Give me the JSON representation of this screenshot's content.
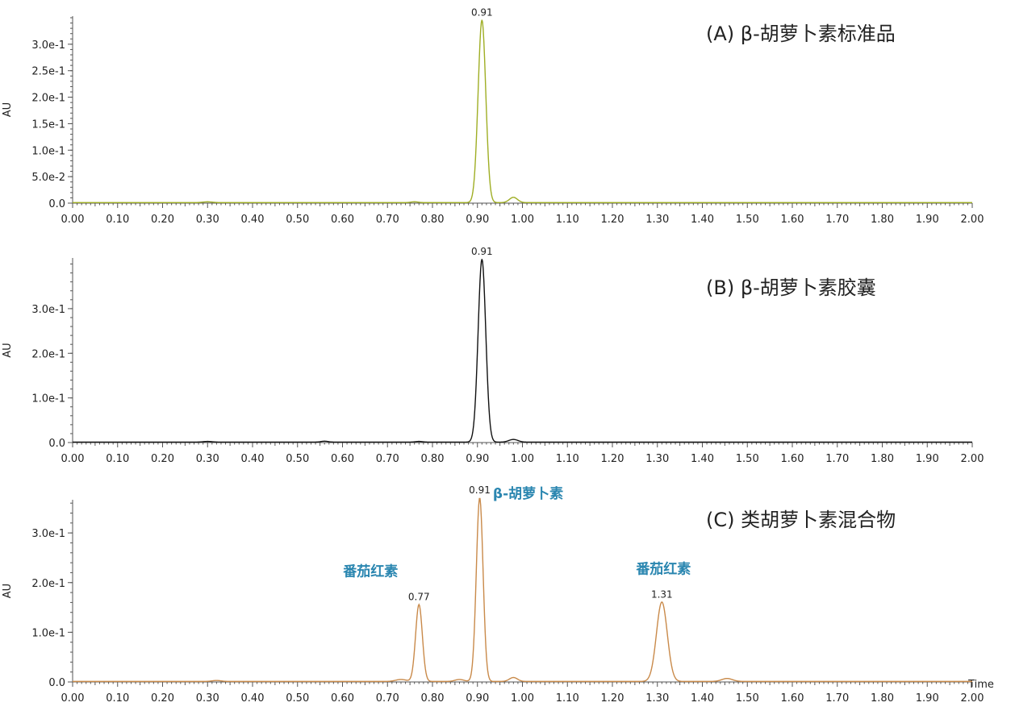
{
  "chart_data": [
    {
      "type": "line",
      "panel": "A",
      "title": "(A) β-胡萝卜素标准品",
      "xlabel": "",
      "ylabel": "AU",
      "xlim": [
        0.0,
        2.0
      ],
      "ylim": [
        0.0,
        0.35
      ],
      "x_tick_labels": [
        "0.00",
        "0.10",
        "0.20",
        "0.30",
        "0.40",
        "0.50",
        "0.60",
        "0.70",
        "0.80",
        "0.90",
        "1.00",
        "1.10",
        "1.20",
        "1.30",
        "1.40",
        "1.50",
        "1.60",
        "1.70",
        "1.80",
        "1.90",
        "2.00"
      ],
      "y_ticks": [
        0.0,
        0.05,
        0.1,
        0.15,
        0.2,
        0.25,
        0.3
      ],
      "y_tick_labels": [
        "0.0",
        "5.0e-2",
        "1.0e-1",
        "1.5e-1",
        "2.0e-1",
        "2.5e-1",
        "3.0e-1"
      ],
      "color": "#9fae24",
      "baseline": 0.001,
      "peaks": [
        {
          "x": 0.3,
          "y": 0.0015,
          "sigma": 0.01
        },
        {
          "x": 0.76,
          "y": 0.0015,
          "sigma": 0.008
        },
        {
          "x": 0.91,
          "y": 0.345,
          "sigma": 0.0085
        },
        {
          "x": 0.98,
          "y": 0.01,
          "sigma": 0.009
        }
      ],
      "peak_labels": [
        {
          "x": 0.91,
          "y": 0.345,
          "text": "0.91"
        }
      ],
      "annotations": []
    },
    {
      "type": "line",
      "panel": "B",
      "title": "(B) β-胡萝卜素胶囊",
      "xlabel": "",
      "ylabel": "AU",
      "xlim": [
        0.0,
        2.0
      ],
      "ylim": [
        0.0,
        0.41
      ],
      "x_tick_labels": [
        "0.00",
        "0.10",
        "0.20",
        "0.30",
        "0.40",
        "0.50",
        "0.60",
        "0.70",
        "0.80",
        "0.90",
        "1.00",
        "1.10",
        "1.20",
        "1.30",
        "1.40",
        "1.50",
        "1.60",
        "1.70",
        "1.80",
        "1.90",
        "2.00"
      ],
      "y_ticks": [
        0.0,
        0.1,
        0.2,
        0.3
      ],
      "y_tick_labels": [
        "0.0",
        "1.0e-1",
        "2.0e-1",
        "3.0e-1"
      ],
      "color": "#111111",
      "baseline": 0.001,
      "peaks": [
        {
          "x": 0.3,
          "y": 0.0015,
          "sigma": 0.01
        },
        {
          "x": 0.56,
          "y": 0.002,
          "sigma": 0.008
        },
        {
          "x": 0.77,
          "y": 0.0015,
          "sigma": 0.008
        },
        {
          "x": 0.91,
          "y": 0.41,
          "sigma": 0.0085
        },
        {
          "x": 0.98,
          "y": 0.006,
          "sigma": 0.01
        }
      ],
      "peak_labels": [
        {
          "x": 0.91,
          "y": 0.41,
          "text": "0.91"
        }
      ],
      "annotations": []
    },
    {
      "type": "line",
      "panel": "C",
      "title": "(C) 类胡萝卜素混合物",
      "xlabel": "Time",
      "ylabel": "AU",
      "xlim": [
        0.0,
        2.0
      ],
      "ylim": [
        0.0,
        0.37
      ],
      "x_tick_labels": [
        "0.00",
        "0.10",
        "0.20",
        "0.30",
        "0.40",
        "0.50",
        "0.60",
        "0.70",
        "0.80",
        "0.90",
        "1.00",
        "1.10",
        "1.20",
        "1.30",
        "1.40",
        "1.50",
        "1.60",
        "1.70",
        "1.80",
        "1.90",
        "2.00"
      ],
      "y_ticks": [
        0.0,
        0.1,
        0.2,
        0.3
      ],
      "y_tick_labels": [
        "0.0",
        "1.0e-1",
        "2.0e-1",
        "3.0e-1"
      ],
      "color": "#c98a4a",
      "baseline": 0.001,
      "peaks": [
        {
          "x": 0.32,
          "y": 0.002,
          "sigma": 0.01
        },
        {
          "x": 0.73,
          "y": 0.004,
          "sigma": 0.012
        },
        {
          "x": 0.77,
          "y": 0.155,
          "sigma": 0.0075
        },
        {
          "x": 0.86,
          "y": 0.004,
          "sigma": 0.01
        },
        {
          "x": 0.905,
          "y": 0.37,
          "sigma": 0.0075
        },
        {
          "x": 0.98,
          "y": 0.008,
          "sigma": 0.009
        },
        {
          "x": 1.31,
          "y": 0.16,
          "sigma": 0.012
        },
        {
          "x": 1.455,
          "y": 0.006,
          "sigma": 0.012
        }
      ],
      "peak_labels": [
        {
          "x": 0.77,
          "y": 0.155,
          "text": "0.77"
        },
        {
          "x": 0.905,
          "y": 0.37,
          "text": "0.91"
        },
        {
          "x": 1.31,
          "y": 0.16,
          "text": "1.31"
        }
      ],
      "annotations": [
        {
          "text": "番茄红素",
          "x": 0.77,
          "y": 0.155
        },
        {
          "text": "β-胡萝卜素",
          "x": 0.905,
          "y": 0.37
        },
        {
          "text": "番茄红素",
          "x": 1.31,
          "y": 0.16
        }
      ]
    }
  ]
}
